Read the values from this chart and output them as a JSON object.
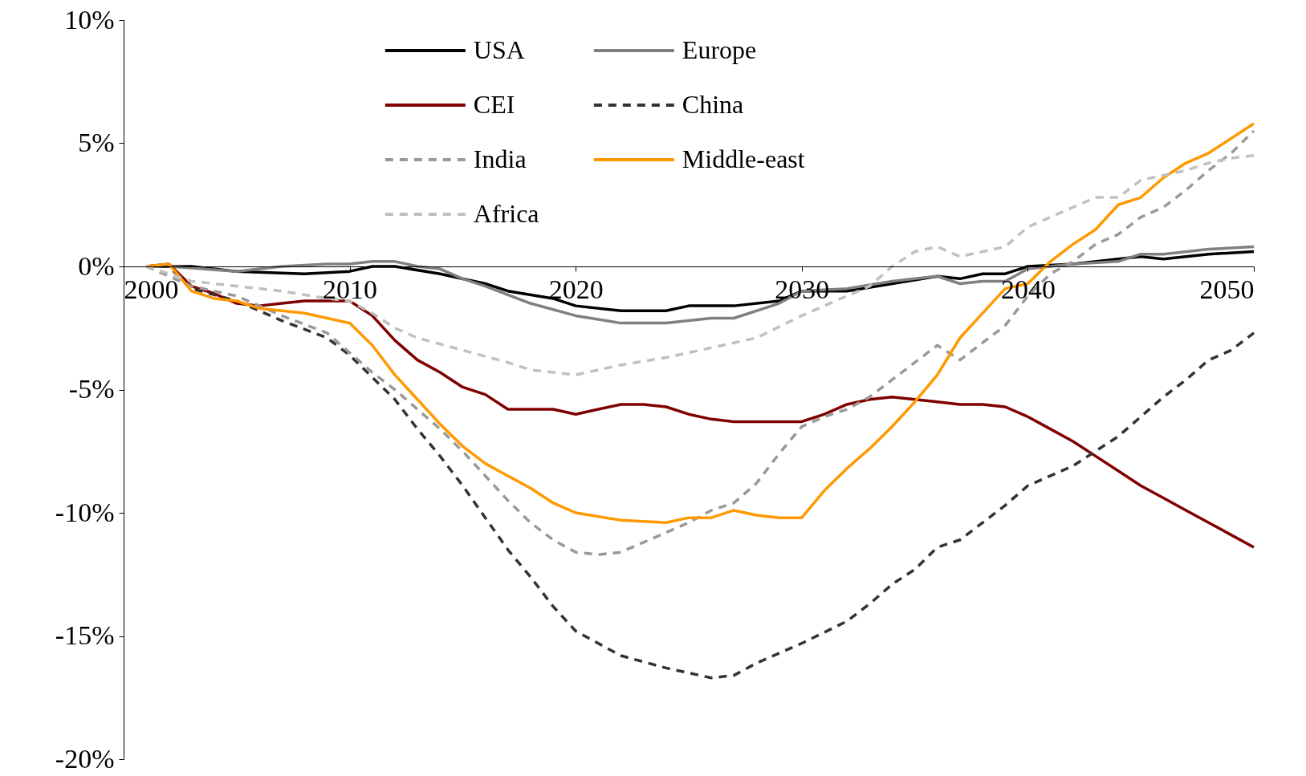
{
  "chart_data": {
    "type": "line",
    "legend": "top",
    "xlim": [
      2000,
      2050
    ],
    "xticks": [
      2000,
      2010,
      2020,
      2030,
      2040,
      2050
    ],
    "ylim": [
      -20,
      10
    ],
    "yticks": [
      {
        "value": -20,
        "label": "-20%"
      },
      {
        "value": -15,
        "label": "-15%"
      },
      {
        "value": -10,
        "label": "-10%"
      },
      {
        "value": -5,
        "label": "-5%"
      },
      {
        "value": 0,
        "label": "0%"
      },
      {
        "value": 5,
        "label": "5%"
      },
      {
        "value": 10,
        "label": "10%"
      }
    ],
    "grid": false,
    "series": [
      {
        "name": "USA",
        "color": "#000000",
        "line_style": "solid",
        "x": [
          2001,
          2003,
          2005,
          2008,
          2010,
          2011,
          2012,
          2014,
          2016,
          2017,
          2019,
          2020,
          2022,
          2024,
          2025,
          2027,
          2029,
          2030,
          2032,
          2034,
          2036,
          2037,
          2038,
          2039,
          2040,
          2042,
          2044,
          2045,
          2046,
          2048,
          2050
        ],
        "values": [
          0,
          0,
          -0.2,
          -0.3,
          -0.2,
          0,
          0,
          -0.3,
          -0.7,
          -1.0,
          -1.3,
          -1.6,
          -1.8,
          -1.8,
          -1.6,
          -1.6,
          -1.4,
          -1.0,
          -1.0,
          -0.7,
          -0.4,
          -0.5,
          -0.3,
          -0.3,
          0,
          0.1,
          0.3,
          0.4,
          0.3,
          0.5,
          0.6
        ]
      },
      {
        "name": "Europe",
        "color": "#808080",
        "line_style": "solid",
        "x": [
          2001,
          2002,
          2005,
          2007,
          2009,
          2010,
          2011,
          2012,
          2013,
          2014,
          2015,
          2016,
          2018,
          2020,
          2022,
          2024,
          2026,
          2027,
          2029,
          2030,
          2032,
          2034,
          2035,
          2036,
          2037,
          2038,
          2039,
          2040,
          2042,
          2044,
          2045,
          2046,
          2048,
          2050
        ],
        "values": [
          0,
          0,
          -0.2,
          0,
          0.1,
          0.1,
          0.2,
          0.2,
          0,
          -0.1,
          -0.5,
          -0.8,
          -1.5,
          -2.0,
          -2.3,
          -2.3,
          -2.1,
          -2.1,
          -1.5,
          -1.0,
          -0.9,
          -0.6,
          -0.5,
          -0.4,
          -0.7,
          -0.6,
          -0.6,
          -0.1,
          0.1,
          0.2,
          0.5,
          0.5,
          0.7,
          0.8
        ]
      },
      {
        "name": "CEI",
        "color": "#800000",
        "line_style": "solid",
        "x": [
          2001,
          2002,
          2003,
          2004,
          2005,
          2006,
          2007,
          2008,
          2010,
          2011,
          2012,
          2013,
          2014,
          2015,
          2016,
          2017,
          2019,
          2020,
          2021,
          2022,
          2023,
          2024,
          2025,
          2026,
          2027,
          2030,
          2031,
          2032,
          2033,
          2034,
          2035,
          2036,
          2037,
          2038,
          2039,
          2040,
          2041,
          2042,
          2043,
          2044,
          2045,
          2046,
          2047,
          2048,
          2049,
          2050
        ],
        "values": [
          0,
          0.1,
          -0.8,
          -1.1,
          -1.5,
          -1.6,
          -1.5,
          -1.4,
          -1.4,
          -2.0,
          -3.0,
          -3.8,
          -4.3,
          -4.9,
          -5.2,
          -5.8,
          -5.8,
          -6.0,
          -5.8,
          -5.6,
          -5.6,
          -5.7,
          -6.0,
          -6.2,
          -6.3,
          -6.3,
          -6.0,
          -5.6,
          -5.4,
          -5.3,
          -5.4,
          -5.5,
          -5.6,
          -5.6,
          -5.7,
          -6.1,
          -6.6,
          -7.1,
          -7.7,
          -8.3,
          -8.9,
          -9.4,
          -9.9,
          -10.4,
          -10.9,
          -11.4
        ]
      },
      {
        "name": "China",
        "color": "#333333",
        "line_style": "dashed",
        "x": [
          2001,
          2002,
          2003,
          2005,
          2007,
          2009,
          2010,
          2011,
          2012,
          2013,
          2014,
          2015,
          2016,
          2017,
          2018,
          2019,
          2020,
          2022,
          2024,
          2025,
          2026,
          2027,
          2028,
          2030,
          2032,
          2033,
          2034,
          2035,
          2036,
          2037,
          2038,
          2039,
          2040,
          2041,
          2042,
          2043,
          2044,
          2045,
          2046,
          2047,
          2048,
          2049,
          2050
        ],
        "values": [
          0,
          0,
          -0.9,
          -1.4,
          -2.2,
          -2.9,
          -3.6,
          -4.5,
          -5.4,
          -6.6,
          -7.7,
          -8.9,
          -10.2,
          -11.5,
          -12.6,
          -13.8,
          -14.8,
          -15.8,
          -16.3,
          -16.5,
          -16.7,
          -16.6,
          -16.1,
          -15.3,
          -14.4,
          -13.7,
          -12.9,
          -12.3,
          -11.4,
          -11.1,
          -10.4,
          -9.7,
          -8.9,
          -8.5,
          -8.1,
          -7.5,
          -6.9,
          -6.1,
          -5.3,
          -4.6,
          -3.8,
          -3.4,
          -2.7
        ]
      },
      {
        "name": "India",
        "color": "#999999",
        "line_style": "dashed",
        "x": [
          2001,
          2003,
          2005,
          2007,
          2009,
          2010,
          2011,
          2012,
          2013,
          2014,
          2015,
          2016,
          2017,
          2018,
          2019,
          2020,
          2021,
          2022,
          2023,
          2024,
          2025,
          2026,
          2027,
          2028,
          2029,
          2030,
          2031,
          2032,
          2033,
          2034,
          2035,
          2036,
          2037,
          2038,
          2039,
          2040,
          2041,
          2042,
          2043,
          2044,
          2045,
          2046,
          2047,
          2048,
          2049,
          2050
        ],
        "values": [
          0,
          -0.8,
          -1.2,
          -2.0,
          -2.7,
          -3.5,
          -4.3,
          -5.0,
          -5.8,
          -6.6,
          -7.5,
          -8.5,
          -9.5,
          -10.4,
          -11.1,
          -11.6,
          -11.7,
          -11.6,
          -11.2,
          -10.8,
          -10.4,
          -9.9,
          -9.6,
          -8.8,
          -7.6,
          -6.5,
          -6.1,
          -5.8,
          -5.3,
          -4.6,
          -3.9,
          -3.2,
          -3.8,
          -3.1,
          -2.4,
          -1.2,
          -0.3,
          0.2,
          0.9,
          1.3,
          2.0,
          2.4,
          3.1,
          3.9,
          4.6,
          5.5
        ]
      },
      {
        "name": "Middle-east",
        "color": "#ff9900",
        "line_style": "solid",
        "x": [
          2001,
          2002,
          2003,
          2004,
          2005,
          2006,
          2008,
          2009,
          2010,
          2011,
          2012,
          2013,
          2014,
          2015,
          2016,
          2017,
          2018,
          2019,
          2020,
          2022,
          2024,
          2025,
          2026,
          2027,
          2028,
          2029,
          2030,
          2031,
          2032,
          2033,
          2034,
          2035,
          2036,
          2037,
          2038,
          2039,
          2040,
          2041,
          2042,
          2043,
          2044,
          2045,
          2046,
          2047,
          2048,
          2049,
          2050
        ],
        "values": [
          0,
          0.1,
          -1.0,
          -1.3,
          -1.4,
          -1.7,
          -1.9,
          -2.1,
          -2.3,
          -3.2,
          -4.4,
          -5.4,
          -6.4,
          -7.3,
          -8.0,
          -8.5,
          -9.0,
          -9.6,
          -10.0,
          -10.3,
          -10.4,
          -10.2,
          -10.2,
          -9.9,
          -10.1,
          -10.2,
          -10.2,
          -9.1,
          -8.2,
          -7.4,
          -6.5,
          -5.5,
          -4.4,
          -2.9,
          -1.9,
          -0.9,
          -0.7,
          0.2,
          0.9,
          1.5,
          2.5,
          2.8,
          3.6,
          4.2,
          4.6,
          5.2,
          5.8
        ]
      },
      {
        "name": "Africa",
        "color": "#c0c0c0",
        "line_style": "dashed",
        "x": [
          2001,
          2003,
          2005,
          2007,
          2009,
          2010,
          2011,
          2012,
          2013,
          2015,
          2017,
          2018,
          2020,
          2022,
          2024,
          2026,
          2028,
          2030,
          2032,
          2033,
          2034,
          2035,
          2036,
          2037,
          2039,
          2040,
          2041,
          2043,
          2044,
          2045,
          2047,
          2048,
          2049,
          2050
        ],
        "values": [
          0,
          -0.6,
          -0.8,
          -1.0,
          -1.3,
          -1.4,
          -1.9,
          -2.5,
          -2.9,
          -3.4,
          -3.9,
          -4.2,
          -4.4,
          -4.0,
          -3.7,
          -3.3,
          -2.9,
          -2.0,
          -1.2,
          -0.8,
          0.0,
          0.6,
          0.8,
          0.4,
          0.8,
          1.6,
          2.0,
          2.8,
          2.8,
          3.5,
          3.9,
          4.2,
          4.4,
          4.5
        ]
      }
    ]
  }
}
